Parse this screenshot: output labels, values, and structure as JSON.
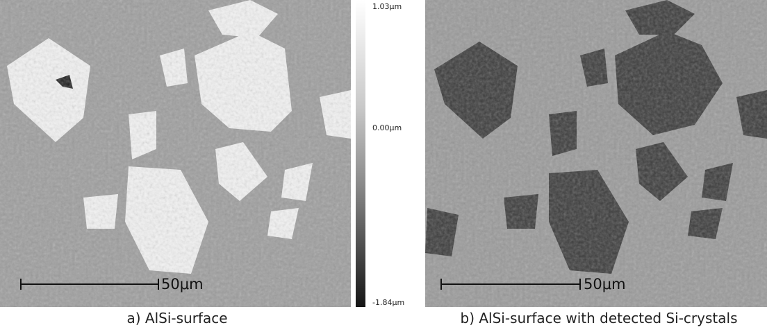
{
  "figure": {
    "left": {
      "scale_bar": "50μm",
      "caption": "a) AlSi-surface"
    },
    "colorbar": {
      "top": "1.03μm",
      "middle": "0.00μm",
      "bottom": "-1.84μm"
    },
    "right": {
      "scale_bar": "50μm",
      "caption": "b) AlSi-surface with detected Si-crystals"
    }
  }
}
